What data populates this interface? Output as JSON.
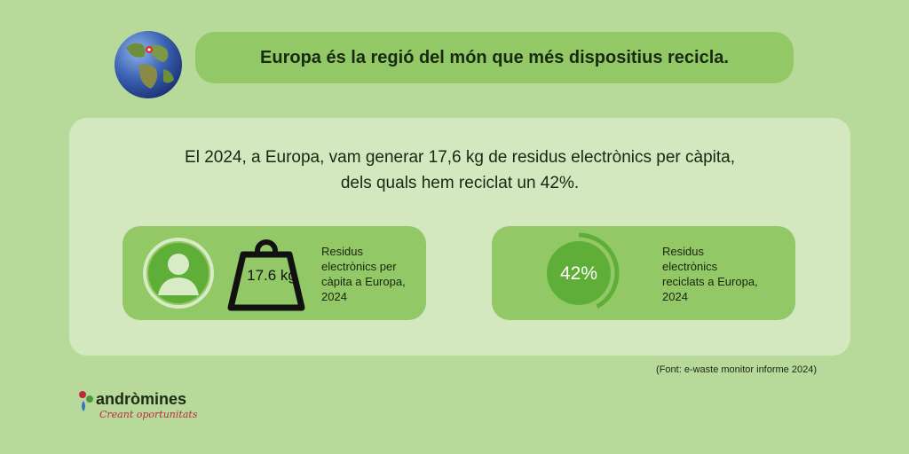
{
  "header": {
    "title": "Europa és la regió del món que més dispositius recicla."
  },
  "intro": {
    "line1": "El 2024, a Europa, vam generar 17,6 kg de residus electrònics per càpita,",
    "line2": "dels quals hem reciclat un 42%."
  },
  "cards": {
    "weight": {
      "value": "17.6 kg",
      "label": "Residus electrònics per càpita a Europa, 2024"
    },
    "recycled": {
      "value": "42%",
      "fraction": 0.42,
      "label": "Residus electrònics reciclats a Europa,  2024"
    }
  },
  "source": "(Font: e-waste monitor informe 2024)",
  "logo": {
    "name": "andròmines",
    "tagline": "Creant oportunitats"
  },
  "icons": {
    "globe": "globe-icon",
    "user": "user-avatar-icon",
    "weight": "weight-icon",
    "ring": "progress-ring"
  },
  "colors": {
    "background": "#b7d99a",
    "accent": "#93c866",
    "panel": "#d3e8bf",
    "ring": "#5fae37"
  }
}
